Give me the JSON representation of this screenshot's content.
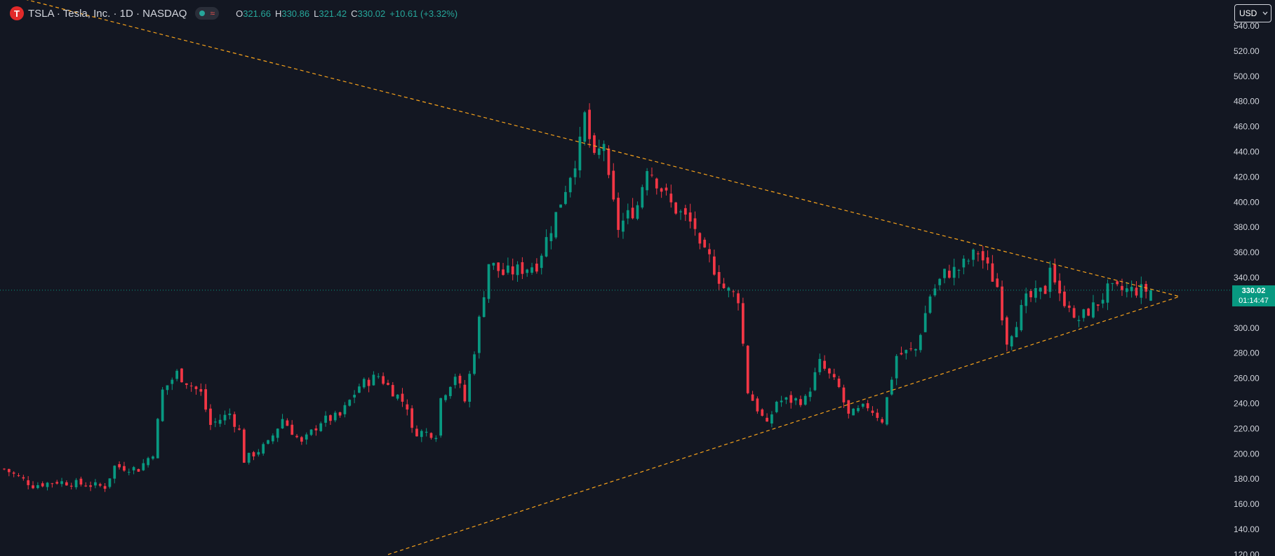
{
  "header": {
    "logo_letter": "T",
    "title": "TSLA · Tesla, Inc. · 1D · NASDAQ",
    "status_wave": "≈",
    "ohlc": [
      {
        "key": "O",
        "value": "321.66"
      },
      {
        "key": "H",
        "value": "330.86"
      },
      {
        "key": "L",
        "value": "321.42"
      },
      {
        "key": "C",
        "value": "330.02"
      }
    ],
    "change": "+10.61 (+3.32%)"
  },
  "currency_selector": {
    "label": "USD",
    "icon": "chevron-down-icon"
  },
  "last_price": {
    "price": "330.02",
    "countdown": "01:14:47",
    "color": "#089981"
  },
  "colors": {
    "background": "#131722",
    "up": "#089981",
    "down": "#f23645",
    "trendline": "#f7a21b",
    "text": "#d1d4dc"
  },
  "chart_data": {
    "type": "candlestick",
    "symbol": "TSLA",
    "interval": "1D",
    "y_axis_ticks": [
      "120.00",
      "140.00",
      "160.00",
      "180.00",
      "200.00",
      "220.00",
      "240.00",
      "260.00",
      "280.00",
      "300.00",
      "320.00",
      "340.00",
      "360.00",
      "380.00",
      "400.00",
      "420.00",
      "440.00",
      "460.00",
      "480.00",
      "500.00",
      "520.00",
      "540.00"
    ],
    "ylim": [
      120,
      545
    ],
    "bar_count": 240,
    "last_close": 330.02,
    "trendlines": [
      {
        "name": "upper",
        "from": {
          "bar": -25,
          "price": 590
        },
        "to": {
          "bar": 245,
          "price": 325
        }
      },
      {
        "name": "lower",
        "from": {
          "bar": 80,
          "price": 120
        },
        "to": {
          "bar": 245,
          "price": 325
        }
      }
    ],
    "price_path": [
      [
        0,
        188
      ],
      [
        6,
        175
      ],
      [
        11,
        178
      ],
      [
        21,
        174
      ],
      [
        23,
        190
      ],
      [
        28,
        188
      ],
      [
        31,
        201
      ],
      [
        33,
        250
      ],
      [
        36,
        264
      ],
      [
        41,
        248
      ],
      [
        43,
        223
      ],
      [
        47,
        232
      ],
      [
        49,
        218
      ],
      [
        50,
        195
      ],
      [
        55,
        208
      ],
      [
        58,
        228
      ],
      [
        62,
        208
      ],
      [
        66,
        226
      ],
      [
        70,
        230
      ],
      [
        74,
        254
      ],
      [
        78,
        262
      ],
      [
        81,
        250
      ],
      [
        84,
        238
      ],
      [
        85,
        218
      ],
      [
        90,
        216
      ],
      [
        91,
        244
      ],
      [
        94,
        263
      ],
      [
        96,
        242
      ],
      [
        98,
        283
      ],
      [
        101,
        352
      ],
      [
        104,
        343
      ],
      [
        108,
        347
      ],
      [
        111,
        351
      ],
      [
        115,
        390
      ],
      [
        120,
        445
      ],
      [
        121,
        468
      ],
      [
        123,
        432
      ],
      [
        125,
        448
      ],
      [
        126,
        415
      ],
      [
        128,
        380
      ],
      [
        132,
        398
      ],
      [
        134,
        430
      ],
      [
        139,
        398
      ],
      [
        144,
        380
      ],
      [
        145,
        361
      ],
      [
        147,
        355
      ],
      [
        150,
        332
      ],
      [
        153,
        324
      ],
      [
        155,
        250
      ],
      [
        159,
        222
      ],
      [
        161,
        242
      ],
      [
        167,
        243
      ],
      [
        170,
        272
      ],
      [
        174,
        252
      ],
      [
        176,
        230
      ],
      [
        180,
        238
      ],
      [
        183,
        227
      ],
      [
        186,
        278
      ],
      [
        190,
        283
      ],
      [
        193,
        326
      ],
      [
        196,
        343
      ],
      [
        199,
        347
      ],
      [
        203,
        361
      ],
      [
        207,
        333
      ],
      [
        209,
        290
      ],
      [
        213,
        322
      ],
      [
        217,
        330
      ],
      [
        218,
        352
      ],
      [
        220,
        324
      ],
      [
        222,
        320
      ],
      [
        223,
        304
      ],
      [
        228,
        320
      ],
      [
        230,
        330.02
      ]
    ]
  }
}
